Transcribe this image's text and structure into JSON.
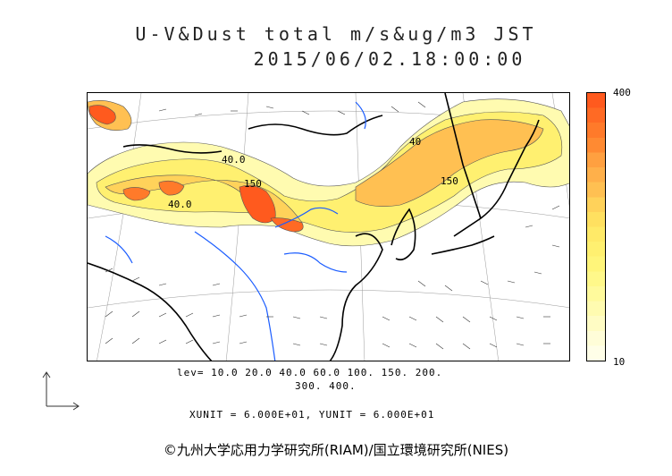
{
  "header": {
    "title": "U-V&Dust total m/s&ug/m3 JST",
    "timestamp": "2015/06/02.18:00:00"
  },
  "legend": {
    "max_label": "400",
    "min_label": "10",
    "colors": [
      "#ff5a1e",
      "#ff6a24",
      "#ff7a2a",
      "#ff8a32",
      "#ffa040",
      "#ffb04a",
      "#ffc052",
      "#ffd25a",
      "#ffe060",
      "#ffea68",
      "#fff070",
      "#fff57a",
      "#fff88a",
      "#fffa9c",
      "#fffbb0",
      "#fffcc4",
      "#fffdd8",
      "#fffee8"
    ]
  },
  "contour_levels": {
    "line1": "lev= 10.0 20.0 40.0 60.0 100. 150. 200.",
    "line2": "300. 400."
  },
  "contour_labels": [
    "40.0",
    "150",
    "40.0",
    "150",
    "40"
  ],
  "units_text": "XUNIT = 6.000E+01, YUNIT = 6.000E+01",
  "credit": "©九州大学応用力学研究所(RIAM)/国立環境研究所(NIES)"
}
